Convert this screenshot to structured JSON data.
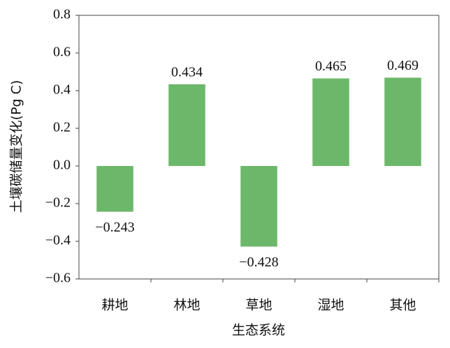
{
  "chart_data": {
    "type": "bar",
    "x_label": "生态系统",
    "y_label": "土壤碳储量变化(Pg C)",
    "categories": [
      "耕地",
      "林地",
      "草地",
      "湿地",
      "其他"
    ],
    "values": [
      -0.243,
      0.434,
      -0.428,
      0.465,
      0.469
    ],
    "value_labels": [
      "−0.243",
      "0.434",
      "−0.428",
      "0.465",
      "0.469"
    ],
    "color": "#6cb86a",
    "ylim": [
      -0.6,
      0.8
    ],
    "yticks": [
      {
        "value": -0.6,
        "label": "−0.6"
      },
      {
        "value": -0.4,
        "label": "−0.4"
      },
      {
        "value": -0.2,
        "label": "−0.2"
      },
      {
        "value": 0,
        "label": "0.0"
      },
      0.2,
      0.4,
      0.6,
      0.8
    ],
    "grid": false
  }
}
